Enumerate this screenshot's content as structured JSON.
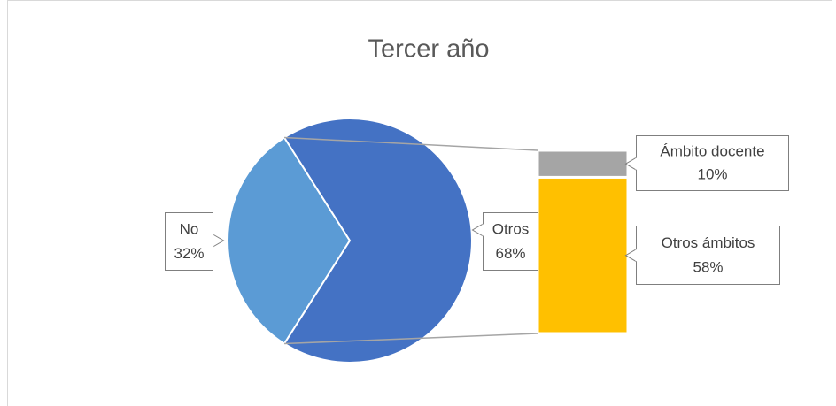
{
  "chart_data": {
    "type": "bar-of-pie",
    "title": "Tercer año",
    "categories": [
      "No",
      "Otros"
    ],
    "values": [
      32,
      68
    ],
    "value_labels": [
      "32%",
      "68%"
    ],
    "colors": [
      "#5b9bd5",
      "#4472c4"
    ],
    "breakdown": {
      "categories": [
        "Ámbito docente",
        "Otros ámbitos"
      ],
      "values": [
        10,
        58
      ],
      "value_labels": [
        "10%",
        "58%"
      ],
      "colors": [
        "#a5a5a5",
        "#ffc000"
      ]
    }
  }
}
